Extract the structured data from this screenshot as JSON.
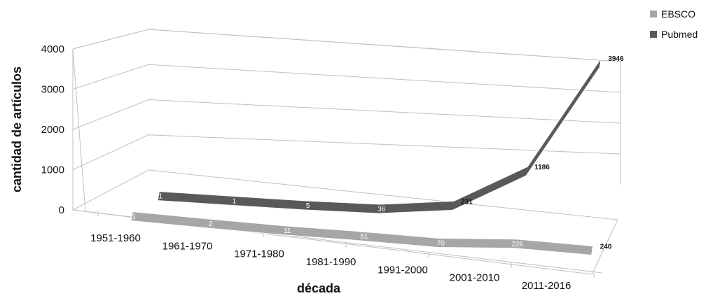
{
  "chart_data": {
    "type": "line",
    "view": "3d-perspective",
    "categories": [
      "1951-1960",
      "1961-1970",
      "1971-1980",
      "1981-1990",
      "1991-2000",
      "2001-2010",
      "2011-2016"
    ],
    "series": [
      {
        "name": "EBSCO",
        "values": [
          1,
          2,
          11,
          51,
          70,
          226,
          240
        ],
        "labels": [
          "1",
          "2",
          "11",
          "51",
          "70",
          "226",
          "240"
        ],
        "color": "#a6a6a6"
      },
      {
        "name": "Pubmed",
        "values": [
          1,
          1,
          5,
          36,
          231,
          1186,
          3946
        ],
        "labels": [
          "1",
          "1",
          "5",
          "36",
          "231",
          "1186",
          "3946"
        ],
        "color": "#595959"
      }
    ],
    "xlabel": "década",
    "ylabel": "cantidad de artículos",
    "yticks": [
      "0",
      "1000",
      "2000",
      "3000",
      "4000"
    ],
    "ylim": [
      0,
      4000
    ],
    "grid": true,
    "legend": "top-right"
  }
}
